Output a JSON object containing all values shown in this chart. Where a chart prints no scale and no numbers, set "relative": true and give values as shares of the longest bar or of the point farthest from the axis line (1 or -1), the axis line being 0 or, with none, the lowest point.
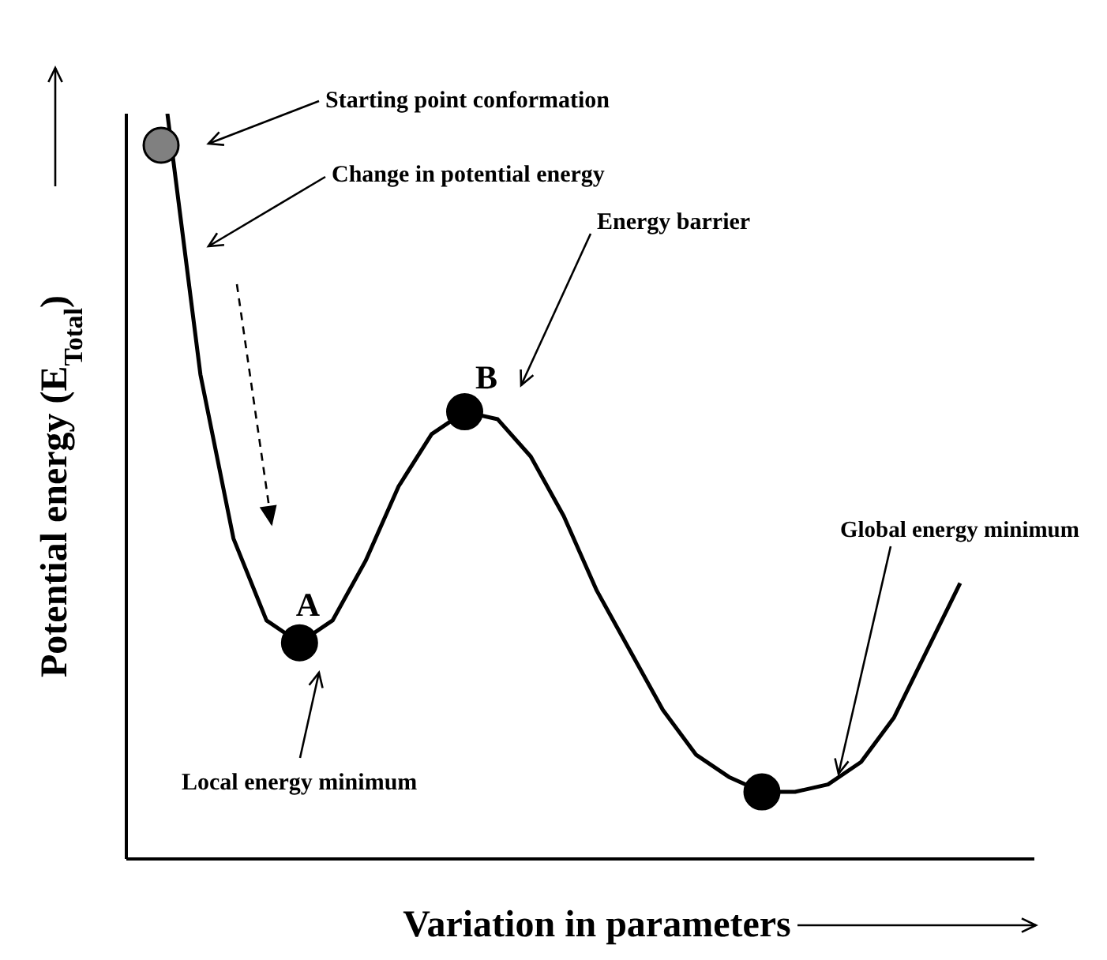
{
  "chart_data": {
    "type": "line",
    "relative": true,
    "xlabel": "Variation in parameters",
    "ylabel": "Potential energy (E$_{Total}$)",
    "categories": [
      null,
      null,
      null,
      null,
      null,
      null,
      null,
      null,
      null,
      null,
      null,
      null,
      null,
      null,
      null,
      null,
      null,
      null,
      null,
      null,
      null,
      null,
      null,
      null,
      null
    ],
    "series": [
      {
        "color": "#000000",
        "values": [
          1,
          0.65,
          0.43,
          0.32,
          0.29,
          0.32,
          0.4,
          0.5,
          0.57,
          0.6,
          0.59,
          0.54,
          0.46,
          0.36,
          0.28,
          0.2,
          0.14,
          0.11,
          0.09,
          0.09,
          0.1,
          0.13,
          0.19,
          0.28,
          0.37
        ]
      }
    ],
    "annotations": [
      "Starting point conformation",
      "Change in potential energy",
      "Energy barrier",
      "Global energy minimum",
      "Local energy minimum",
      "A",
      "B"
    ]
  }
}
